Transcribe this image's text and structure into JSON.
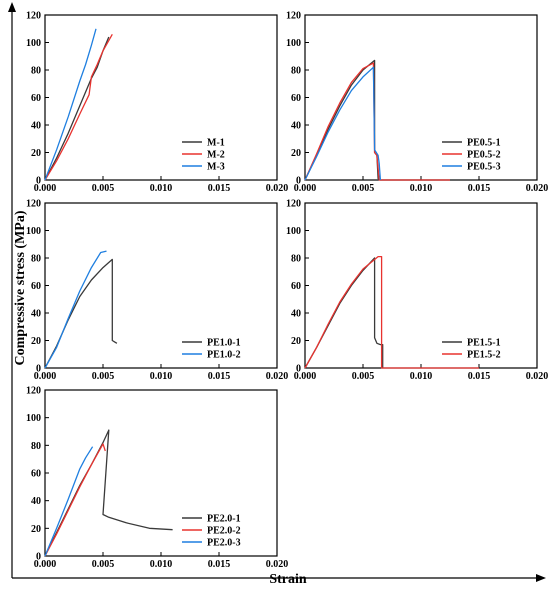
{
  "figure": {
    "ylabel": "Compressive stress (MPa)",
    "xlabel": "Strain"
  },
  "colors": {
    "black_series": "#3a3a3a",
    "red_series": "#e8332f",
    "blue_series": "#1f7fe0"
  },
  "chart_data": [
    {
      "type": "line",
      "xlim": [
        0,
        0.02
      ],
      "ylim": [
        0,
        120
      ],
      "xticks": [
        "0.000",
        "0.005",
        "0.010",
        "0.015",
        "0.020"
      ],
      "yticks": [
        "0",
        "20",
        "40",
        "60",
        "80",
        "100",
        "120"
      ],
      "legend_position": "bottom-right",
      "series": [
        {
          "name": "M-1",
          "color": "#3a3a3a",
          "points": [
            [
              0,
              0
            ],
            [
              0.001,
              16
            ],
            [
              0.002,
              34
            ],
            [
              0.003,
              54
            ],
            [
              0.004,
              74
            ],
            [
              0.0045,
              82
            ],
            [
              0.005,
              94
            ],
            [
              0.0055,
              104
            ]
          ]
        },
        {
          "name": "M-2",
          "color": "#e8332f",
          "points": [
            [
              0,
              0
            ],
            [
              0.001,
              14
            ],
            [
              0.002,
              30
            ],
            [
              0.003,
              48
            ],
            [
              0.0038,
              62
            ],
            [
              0.004,
              75
            ],
            [
              0.0045,
              84
            ],
            [
              0.005,
              94
            ],
            [
              0.0058,
              106
            ]
          ]
        },
        {
          "name": "M-3",
          "color": "#1f7fe0",
          "points": [
            [
              0,
              0
            ],
            [
              0.001,
              22
            ],
            [
              0.002,
              46
            ],
            [
              0.003,
              72
            ],
            [
              0.0035,
              84
            ],
            [
              0.004,
              98
            ],
            [
              0.0044,
              110
            ]
          ]
        }
      ]
    },
    {
      "type": "line",
      "xlim": [
        0,
        0.02
      ],
      "ylim": [
        0,
        120
      ],
      "xticks": [
        "0.000",
        "0.005",
        "0.010",
        "0.015",
        "0.020"
      ],
      "yticks": [
        "0",
        "20",
        "40",
        "60",
        "80",
        "100",
        "120"
      ],
      "legend_position": "bottom-right",
      "series": [
        {
          "name": "PE0.5-1",
          "color": "#3a3a3a",
          "points": [
            [
              0,
              0
            ],
            [
              0.001,
              18
            ],
            [
              0.002,
              37
            ],
            [
              0.003,
              54
            ],
            [
              0.004,
              69
            ],
            [
              0.005,
              80
            ],
            [
              0.006,
              87
            ],
            [
              0.006,
              20
            ],
            [
              0.0062,
              18
            ],
            [
              0.0063,
              1
            ],
            [
              0.0065,
              0
            ],
            [
              0.0125,
              0
            ]
          ]
        },
        {
          "name": "PE0.5-2",
          "color": "#e8332f",
          "points": [
            [
              0,
              0
            ],
            [
              0.001,
              19
            ],
            [
              0.002,
              39
            ],
            [
              0.003,
              56
            ],
            [
              0.004,
              71
            ],
            [
              0.005,
              81
            ],
            [
              0.0059,
              85
            ],
            [
              0.006,
              20
            ],
            [
              0.0062,
              18
            ],
            [
              0.0064,
              0
            ],
            [
              0.0125,
              0
            ]
          ]
        },
        {
          "name": "PE0.5-3",
          "color": "#1f7fe0",
          "points": [
            [
              0,
              0
            ],
            [
              0.001,
              17
            ],
            [
              0.002,
              35
            ],
            [
              0.003,
              51
            ],
            [
              0.004,
              65
            ],
            [
              0.005,
              75
            ],
            [
              0.0059,
              82
            ],
            [
              0.006,
              22
            ],
            [
              0.0063,
              18
            ],
            [
              0.0064,
              12
            ],
            [
              0.0065,
              0
            ]
          ]
        }
      ]
    },
    {
      "type": "line",
      "xlim": [
        0,
        0.02
      ],
      "ylim": [
        0,
        120
      ],
      "xticks": [
        "0.000",
        "0.005",
        "0.010",
        "0.015",
        "0.020"
      ],
      "yticks": [
        "0",
        "20",
        "40",
        "60",
        "80",
        "100",
        "120"
      ],
      "legend_position": "bottom-right",
      "series": [
        {
          "name": "PE1.0-1",
          "color": "#3a3a3a",
          "points": [
            [
              0,
              0
            ],
            [
              0.001,
              16
            ],
            [
              0.002,
              35
            ],
            [
              0.003,
              52
            ],
            [
              0.004,
              64
            ],
            [
              0.005,
              73
            ],
            [
              0.0058,
              79
            ],
            [
              0.0058,
              20
            ],
            [
              0.006,
              19
            ],
            [
              0.0062,
              18
            ]
          ]
        },
        {
          "name": "PE1.0-2",
          "color": "#1f7fe0",
          "points": [
            [
              0,
              0
            ],
            [
              0.001,
              15
            ],
            [
              0.002,
              36
            ],
            [
              0.003,
              56
            ],
            [
              0.004,
              73
            ],
            [
              0.0048,
              84
            ],
            [
              0.0053,
              85
            ]
          ]
        }
      ]
    },
    {
      "type": "line",
      "xlim": [
        0,
        0.02
      ],
      "ylim": [
        0,
        120
      ],
      "xticks": [
        "0.000",
        "0.005",
        "0.010",
        "0.015",
        "0.020"
      ],
      "yticks": [
        "0",
        "20",
        "40",
        "60",
        "80",
        "100",
        "120"
      ],
      "legend_position": "bottom-right",
      "series": [
        {
          "name": "PE1.5-1",
          "color": "#3a3a3a",
          "points": [
            [
              0,
              0
            ],
            [
              0.001,
              15
            ],
            [
              0.002,
              31
            ],
            [
              0.003,
              47
            ],
            [
              0.004,
              60
            ],
            [
              0.005,
              71
            ],
            [
              0.006,
              80
            ],
            [
              0.006,
              22
            ],
            [
              0.0062,
              18
            ],
            [
              0.0065,
              17
            ],
            [
              0.0067,
              17
            ],
            [
              0.0067,
              0
            ]
          ]
        },
        {
          "name": "PE1.5-2",
          "color": "#e8332f",
          "points": [
            [
              0,
              0
            ],
            [
              0.001,
              15
            ],
            [
              0.002,
              32
            ],
            [
              0.003,
              48
            ],
            [
              0.004,
              61
            ],
            [
              0.005,
              72
            ],
            [
              0.0063,
              81
            ],
            [
              0.0066,
              81
            ],
            [
              0.0066,
              0
            ],
            [
              0.015,
              0
            ]
          ]
        }
      ]
    },
    {
      "type": "line",
      "xlim": [
        0,
        0.02
      ],
      "ylim": [
        0,
        120
      ],
      "xticks": [
        "0.000",
        "0.005",
        "0.010",
        "0.015",
        "0.020"
      ],
      "yticks": [
        "0",
        "20",
        "40",
        "60",
        "80",
        "100",
        "120"
      ],
      "legend_position": "bottom-right",
      "series": [
        {
          "name": "PE2.0-1",
          "color": "#3a3a3a",
          "points": [
            [
              0,
              0
            ],
            [
              0.001,
              17
            ],
            [
              0.002,
              34
            ],
            [
              0.003,
              51
            ],
            [
              0.004,
              66
            ],
            [
              0.005,
              82
            ],
            [
              0.0055,
              91
            ],
            [
              0.005,
              30
            ],
            [
              0.0055,
              28
            ],
            [
              0.007,
              24
            ],
            [
              0.009,
              20
            ],
            [
              0.011,
              19
            ]
          ]
        },
        {
          "name": "PE2.0-2",
          "color": "#e8332f",
          "points": [
            [
              0,
              0
            ],
            [
              0.001,
              16
            ],
            [
              0.002,
              33
            ],
            [
              0.003,
              50
            ],
            [
              0.004,
              66
            ],
            [
              0.0048,
              78
            ],
            [
              0.005,
              81
            ],
            [
              0.0052,
              76
            ]
          ]
        },
        {
          "name": "PE2.0-3",
          "color": "#1f7fe0",
          "points": [
            [
              0,
              0
            ],
            [
              0.001,
              20
            ],
            [
              0.002,
              41
            ],
            [
              0.003,
              63
            ],
            [
              0.0035,
              71
            ],
            [
              0.0041,
              79
            ]
          ]
        }
      ]
    }
  ]
}
